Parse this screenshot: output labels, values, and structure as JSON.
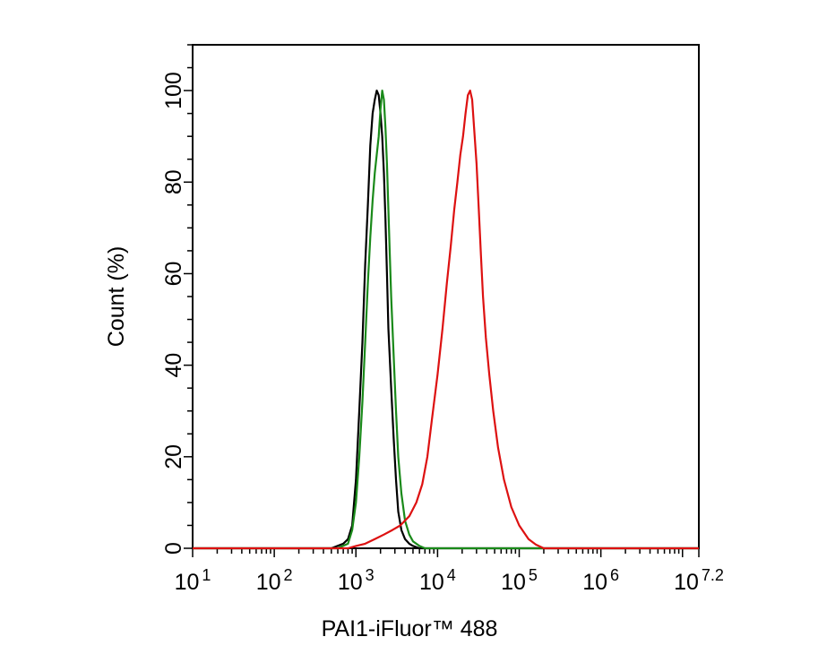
{
  "chart_data": {
    "type": "line",
    "title": "",
    "xlabel": "PAI1-iFluor™ 488",
    "ylabel": "Count  (%)",
    "xscale": "log",
    "xlim": [
      10,
      15848931.92
    ],
    "ylim": [
      0,
      110
    ],
    "grid": false,
    "x_ticks": [
      {
        "value": 10,
        "base": "10",
        "exp": "1"
      },
      {
        "value": 100,
        "base": "10",
        "exp": "2"
      },
      {
        "value": 1000,
        "base": "10",
        "exp": "3"
      },
      {
        "value": 10000,
        "base": "10",
        "exp": "4"
      },
      {
        "value": 100000,
        "base": "10",
        "exp": "5"
      },
      {
        "value": 1000000,
        "base": "10",
        "exp": "6"
      },
      {
        "value": 15848931.92,
        "base": "10",
        "exp": "7.2"
      }
    ],
    "y_ticks": [
      0,
      20,
      40,
      60,
      80,
      100
    ],
    "series": [
      {
        "color": "#000000",
        "x": [
          10,
          500,
          700,
          800,
          900,
          1000,
          1100,
          1200,
          1300,
          1400,
          1500,
          1600,
          1700,
          1800,
          1900,
          2000,
          2100,
          2200,
          2300,
          2400,
          2500,
          2700,
          2900,
          3100,
          3300,
          3600,
          4000,
          4500,
          5000,
          6000,
          15848931.92
        ],
        "y": [
          0,
          0,
          1,
          2,
          5,
          15,
          30,
          45,
          62,
          75,
          88,
          95,
          98,
          100,
          99,
          95,
          90,
          82,
          72,
          60,
          48,
          35,
          24,
          15,
          8,
          4,
          2,
          1,
          0.5,
          0,
          0
        ]
      },
      {
        "color": "#1a8a1a",
        "x": [
          10,
          600,
          800,
          900,
          1000,
          1100,
          1200,
          1300,
          1400,
          1500,
          1600,
          1700,
          1800,
          1900,
          2000,
          2100,
          2200,
          2300,
          2400,
          2500,
          2600,
          2700,
          2900,
          3100,
          3300,
          3600,
          4000,
          4500,
          5000,
          6000,
          7000,
          15848931.92
        ],
        "y": [
          0,
          0,
          1,
          4,
          10,
          20,
          32,
          45,
          58,
          68,
          76,
          82,
          86,
          90,
          96,
          100,
          98,
          92,
          84,
          74,
          64,
          55,
          42,
          30,
          20,
          12,
          6,
          3,
          1.5,
          0.5,
          0,
          0
        ]
      },
      {
        "color": "#dd1111",
        "x": [
          10,
          800,
          1000,
          1300,
          1700,
          2200,
          2800,
          3500,
          4500,
          5500,
          6500,
          7500,
          8500,
          10000,
          11500,
          13000,
          14500,
          16000,
          17500,
          19000,
          20500,
          22000,
          23500,
          25000,
          26500,
          28000,
          30000,
          32000,
          34000,
          36000,
          39000,
          43000,
          48000,
          55000,
          65000,
          80000,
          100000,
          130000,
          160000,
          200000,
          15848931.92
        ],
        "y": [
          0,
          0,
          0.5,
          1,
          2,
          3,
          4,
          5,
          7,
          10,
          14,
          20,
          28,
          38,
          48,
          58,
          66,
          74,
          80,
          86,
          90,
          95,
          99,
          100,
          98,
          92,
          84,
          74,
          64,
          55,
          46,
          38,
          30,
          22,
          15,
          9,
          5,
          2,
          0.8,
          0,
          0
        ]
      }
    ]
  }
}
